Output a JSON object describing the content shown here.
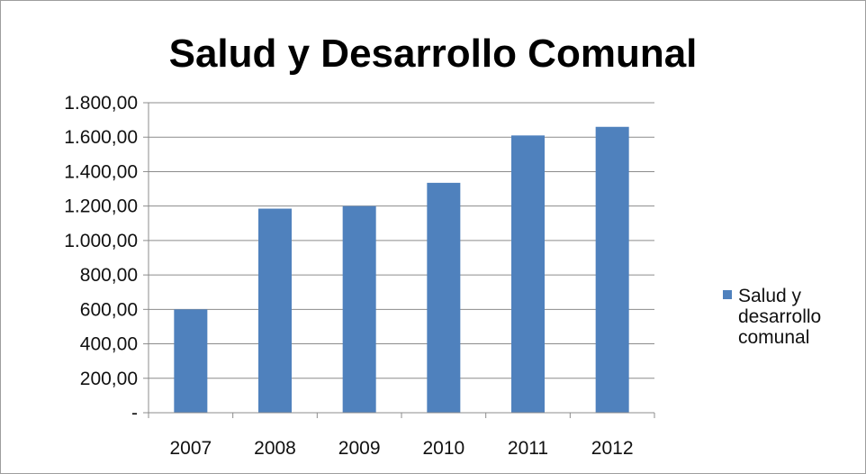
{
  "chart_data": {
    "type": "bar",
    "title": "Salud y Desarrollo Comunal",
    "categories": [
      "2007",
      "2008",
      "2009",
      "2010",
      "2011",
      "2012"
    ],
    "series": [
      {
        "name": "Salud y desarrollo comunal",
        "values": [
          600,
          1185,
          1200,
          1335,
          1610,
          1660
        ],
        "color": "#4f81bd"
      }
    ],
    "ylim": [
      0,
      1800
    ],
    "y_ticks": [
      {
        "value": 0,
        "label": "-"
      },
      {
        "value": 200,
        "label": "200,00"
      },
      {
        "value": 400,
        "label": "400,00"
      },
      {
        "value": 600,
        "label": "600,00"
      },
      {
        "value": 800,
        "label": "800,00"
      },
      {
        "value": 1000,
        "label": "1.000,00"
      },
      {
        "value": 1200,
        "label": "1.200,00"
      },
      {
        "value": 1400,
        "label": "1.400,00"
      },
      {
        "value": 1600,
        "label": "1.600,00"
      },
      {
        "value": 1800,
        "label": "1.800,00"
      }
    ],
    "legend_lines": [
      "Salud y",
      "desarrollo",
      "comunal"
    ],
    "legend_position": "right",
    "grid": true,
    "gridline_color": "#8c8c8c",
    "axis_color": "#8c8c8c"
  }
}
